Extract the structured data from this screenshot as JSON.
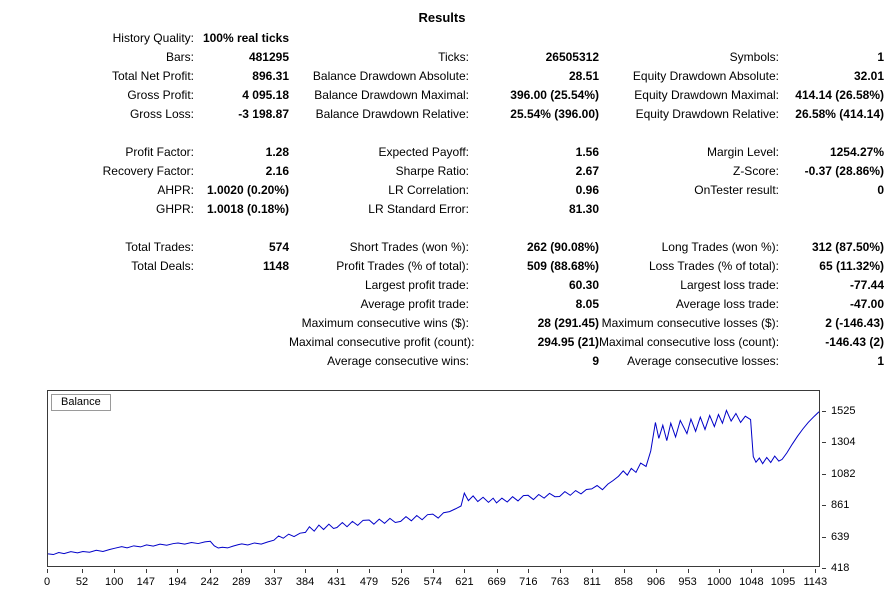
{
  "title": "Results",
  "stats": {
    "rows": [
      [
        "History Quality:",
        "100% real ticks",
        "",
        "",
        "",
        ""
      ],
      [
        "Bars:",
        "481295",
        "Ticks:",
        "26505312",
        "Symbols:",
        "1"
      ],
      [
        "Total Net Profit:",
        "896.31",
        "Balance Drawdown Absolute:",
        "28.51",
        "Equity Drawdown Absolute:",
        "32.01"
      ],
      [
        "Gross Profit:",
        "4 095.18",
        "Balance Drawdown Maximal:",
        "396.00 (25.54%)",
        "Equity Drawdown Maximal:",
        "414.14 (26.58%)"
      ],
      [
        "Gross Loss:",
        "-3 198.87",
        "Balance Drawdown Relative:",
        "25.54% (396.00)",
        "Equity Drawdown Relative:",
        "26.58% (414.14)"
      ],
      [],
      [
        "Profit Factor:",
        "1.28",
        "Expected Payoff:",
        "1.56",
        "Margin Level:",
        "1254.27%"
      ],
      [
        "Recovery Factor:",
        "2.16",
        "Sharpe Ratio:",
        "2.67",
        "Z-Score:",
        "-0.37 (28.86%)"
      ],
      [
        "AHPR:",
        "1.0020 (0.20%)",
        "LR Correlation:",
        "0.96",
        "OnTester result:",
        "0"
      ],
      [
        "GHPR:",
        "1.0018 (0.18%)",
        "LR Standard Error:",
        "81.30",
        "",
        ""
      ],
      [],
      [
        "Total Trades:",
        "574",
        "Short Trades (won %):",
        "262 (90.08%)",
        "Long Trades (won %):",
        "312 (87.50%)"
      ],
      [
        "Total Deals:",
        "1148",
        "Profit Trades (% of total):",
        "509 (88.68%)",
        "Loss Trades (% of total):",
        "65 (11.32%)"
      ],
      [
        "",
        "",
        "Largest profit trade:",
        "60.30",
        "Largest loss trade:",
        "-77.44"
      ],
      [
        "",
        "",
        "Average profit trade:",
        "8.05",
        "Average loss trade:",
        "-47.00"
      ],
      [
        "",
        "",
        "Maximum consecutive wins ($):",
        "28 (291.45)",
        "Maximum consecutive losses ($):",
        "2 (-146.43)"
      ],
      [
        "",
        "",
        "Maximal consecutive profit (count):",
        "294.95 (21)",
        "Maximal consecutive loss (count):",
        "-146.43 (2)"
      ],
      [
        "",
        "",
        "Average consecutive wins:",
        "9",
        "Average consecutive losses:",
        "1"
      ]
    ]
  },
  "chart_data": {
    "type": "line",
    "title": "Balance",
    "series_label": "Balance",
    "line_color": "#0000c8",
    "grid": "none",
    "legend_position": "top-left",
    "x_range": [
      0,
      1150
    ],
    "y_range": [
      418,
      1666
    ],
    "x_ticks": [
      0,
      52,
      100,
      147,
      194,
      242,
      289,
      337,
      384,
      431,
      479,
      526,
      574,
      621,
      669,
      716,
      763,
      811,
      858,
      906,
      953,
      1000,
      1048,
      1095,
      1143
    ],
    "y_ticks": [
      1525,
      1304,
      1082,
      861,
      639,
      418
    ],
    "points": [
      [
        0,
        505
      ],
      [
        8,
        500
      ],
      [
        16,
        514
      ],
      [
        24,
        506
      ],
      [
        34,
        520
      ],
      [
        44,
        512
      ],
      [
        52,
        522
      ],
      [
        62,
        516
      ],
      [
        72,
        530
      ],
      [
        82,
        522
      ],
      [
        92,
        536
      ],
      [
        100,
        545
      ],
      [
        110,
        556
      ],
      [
        118,
        548
      ],
      [
        128,
        562
      ],
      [
        138,
        554
      ],
      [
        147,
        568
      ],
      [
        157,
        560
      ],
      [
        167,
        574
      ],
      [
        177,
        566
      ],
      [
        187,
        578
      ],
      [
        194,
        582
      ],
      [
        204,
        574
      ],
      [
        214,
        586
      ],
      [
        224,
        578
      ],
      [
        234,
        590
      ],
      [
        242,
        594
      ],
      [
        248,
        562
      ],
      [
        254,
        546
      ],
      [
        260,
        552
      ],
      [
        268,
        547
      ],
      [
        276,
        560
      ],
      [
        284,
        570
      ],
      [
        289,
        576
      ],
      [
        298,
        568
      ],
      [
        308,
        582
      ],
      [
        318,
        574
      ],
      [
        328,
        590
      ],
      [
        337,
        602
      ],
      [
        344,
        632
      ],
      [
        351,
        616
      ],
      [
        359,
        645
      ],
      [
        367,
        628
      ],
      [
        376,
        652
      ],
      [
        384,
        658
      ],
      [
        390,
        698
      ],
      [
        397,
        666
      ],
      [
        404,
        710
      ],
      [
        411,
        678
      ],
      [
        419,
        716
      ],
      [
        426,
        686
      ],
      [
        431,
        692
      ],
      [
        439,
        728
      ],
      [
        446,
        698
      ],
      [
        454,
        736
      ],
      [
        462,
        708
      ],
      [
        470,
        744
      ],
      [
        479,
        746
      ],
      [
        486,
        716
      ],
      [
        494,
        752
      ],
      [
        502,
        722
      ],
      [
        510,
        758
      ],
      [
        518,
        728
      ],
      [
        526,
        736
      ],
      [
        534,
        770
      ],
      [
        542,
        740
      ],
      [
        550,
        778
      ],
      [
        558,
        748
      ],
      [
        566,
        784
      ],
      [
        574,
        788
      ],
      [
        582,
        760
      ],
      [
        590,
        798
      ],
      [
        599,
        806
      ],
      [
        608,
        826
      ],
      [
        616,
        846
      ],
      [
        621,
        938
      ],
      [
        627,
        884
      ],
      [
        634,
        918
      ],
      [
        641,
        878
      ],
      [
        649,
        908
      ],
      [
        657,
        872
      ],
      [
        664,
        902
      ],
      [
        669,
        868
      ],
      [
        677,
        902
      ],
      [
        685,
        874
      ],
      [
        693,
        912
      ],
      [
        701,
        882
      ],
      [
        709,
        920
      ],
      [
        716,
        922
      ],
      [
        724,
        892
      ],
      [
        732,
        928
      ],
      [
        740,
        902
      ],
      [
        748,
        936
      ],
      [
        756,
        912
      ],
      [
        763,
        914
      ],
      [
        771,
        948
      ],
      [
        779,
        922
      ],
      [
        787,
        956
      ],
      [
        795,
        932
      ],
      [
        803,
        964
      ],
      [
        811,
        968
      ],
      [
        819,
        992
      ],
      [
        827,
        962
      ],
      [
        835,
        1002
      ],
      [
        843,
        1028
      ],
      [
        851,
        1058
      ],
      [
        858,
        1096
      ],
      [
        864,
        1066
      ],
      [
        870,
        1114
      ],
      [
        877,
        1086
      ],
      [
        884,
        1152
      ],
      [
        892,
        1128
      ],
      [
        899,
        1238
      ],
      [
        906,
        1442
      ],
      [
        911,
        1328
      ],
      [
        917,
        1422
      ],
      [
        923,
        1312
      ],
      [
        929,
        1436
      ],
      [
        936,
        1338
      ],
      [
        943,
        1456
      ],
      [
        953,
        1362
      ],
      [
        959,
        1466
      ],
      [
        966,
        1378
      ],
      [
        973,
        1480
      ],
      [
        980,
        1392
      ],
      [
        987,
        1492
      ],
      [
        994,
        1412
      ],
      [
        1000,
        1498
      ],
      [
        1006,
        1436
      ],
      [
        1012,
        1528
      ],
      [
        1019,
        1452
      ],
      [
        1026,
        1506
      ],
      [
        1033,
        1442
      ],
      [
        1040,
        1486
      ],
      [
        1048,
        1462
      ],
      [
        1052,
        1198
      ],
      [
        1056,
        1158
      ],
      [
        1061,
        1188
      ],
      [
        1066,
        1148
      ],
      [
        1072,
        1192
      ],
      [
        1078,
        1156
      ],
      [
        1084,
        1202
      ],
      [
        1090,
        1166
      ],
      [
        1095,
        1178
      ],
      [
        1102,
        1224
      ],
      [
        1110,
        1286
      ],
      [
        1118,
        1344
      ],
      [
        1126,
        1396
      ],
      [
        1134,
        1442
      ],
      [
        1143,
        1486
      ],
      [
        1150,
        1518
      ]
    ]
  }
}
